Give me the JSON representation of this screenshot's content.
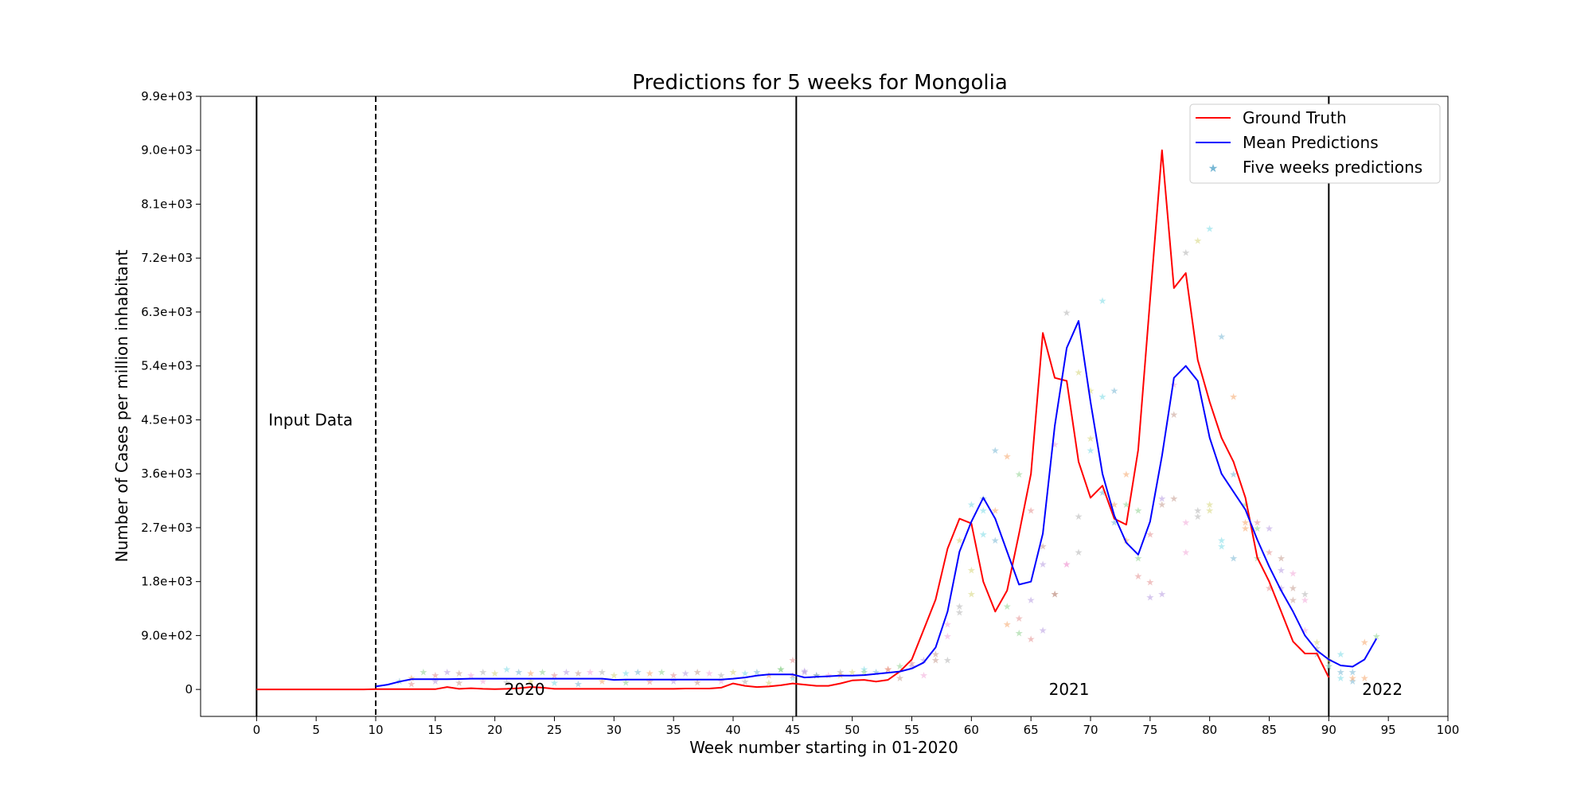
{
  "chart_data": {
    "type": "line",
    "title": "Predictions for 5 weeks for Mongolia",
    "xlabel": "Week number starting in 01-2020",
    "ylabel": "Number of Cases per million inhabitant",
    "xlim": [
      -4.7,
      100
    ],
    "ylim": [
      -450,
      9900
    ],
    "x_ticks": [
      0,
      5,
      10,
      15,
      20,
      25,
      30,
      35,
      40,
      45,
      50,
      55,
      60,
      65,
      70,
      75,
      80,
      85,
      90,
      95,
      100
    ],
    "y_ticks": [
      0,
      900,
      1800,
      2700,
      3600,
      4500,
      5400,
      6300,
      7200,
      8100,
      9000,
      9900
    ],
    "y_tick_labels": [
      "0",
      "9.0e+02",
      "1.8e+03",
      "2.7e+03",
      "3.6e+03",
      "4.5e+03",
      "5.4e+03",
      "6.3e+03",
      "7.2e+03",
      "8.1e+03",
      "9.0e+03",
      "9.9e+03"
    ],
    "grid": false,
    "legend_position": "top-right",
    "vertical_lines": [
      {
        "x": 0,
        "style": "solid"
      },
      {
        "x": 10,
        "style": "dashed"
      },
      {
        "x": 45.3,
        "style": "solid"
      },
      {
        "x": 90,
        "style": "solid"
      }
    ],
    "annotations": [
      {
        "text": "Input Data",
        "x": 1,
        "y": 4500
      },
      {
        "text": "2020",
        "x": 20.8,
        "y": 0
      },
      {
        "text": "2021",
        "x": 66.5,
        "y": 0
      },
      {
        "text": "2022",
        "x": 92.8,
        "y": 0
      }
    ],
    "series": [
      {
        "name": "Ground Truth",
        "color": "#ff0000",
        "style": "line",
        "x": [
          0,
          1,
          2,
          3,
          4,
          5,
          6,
          7,
          8,
          9,
          10,
          11,
          12,
          13,
          14,
          15,
          16,
          17,
          18,
          19,
          20,
          21,
          22,
          23,
          24,
          25,
          26,
          27,
          28,
          29,
          30,
          31,
          32,
          33,
          34,
          35,
          36,
          37,
          38,
          39,
          40,
          41,
          42,
          43,
          44,
          45,
          46,
          47,
          48,
          49,
          50,
          51,
          52,
          53,
          54,
          55,
          56,
          57,
          58,
          59,
          60,
          61,
          62,
          63,
          64,
          65,
          66,
          67,
          68,
          69,
          70,
          71,
          72,
          73,
          74,
          75,
          76,
          77,
          78,
          79,
          80,
          81,
          82,
          83,
          84,
          85,
          86,
          87,
          88,
          89,
          90
        ],
        "y": [
          0,
          0,
          0,
          0,
          0,
          0,
          0,
          0,
          0,
          0,
          5,
          5,
          5,
          5,
          5,
          5,
          40,
          10,
          20,
          10,
          5,
          10,
          20,
          40,
          30,
          10,
          10,
          10,
          10,
          10,
          10,
          10,
          10,
          10,
          10,
          10,
          15,
          15,
          15,
          30,
          100,
          60,
          40,
          50,
          70,
          100,
          80,
          60,
          60,
          100,
          150,
          160,
          130,
          160,
          300,
          500,
          1000,
          1500,
          2350,
          2850,
          2770,
          1800,
          1300,
          1650,
          2600,
          3600,
          5950,
          5200,
          5150,
          3800,
          3200,
          3400,
          2850,
          2750,
          4000,
          6500,
          9000,
          6700,
          6950,
          5500,
          4800,
          4200,
          3800,
          3200,
          2200,
          1800,
          1300,
          800,
          600,
          600,
          200
        ]
      },
      {
        "name": "Mean Predictions",
        "color": "#0000ff",
        "style": "line",
        "x": [
          10,
          11,
          12,
          13,
          14,
          15,
          16,
          17,
          18,
          19,
          20,
          21,
          22,
          23,
          24,
          25,
          26,
          27,
          28,
          29,
          30,
          31,
          32,
          33,
          34,
          35,
          36,
          37,
          38,
          39,
          40,
          41,
          42,
          43,
          44,
          45,
          46,
          47,
          48,
          49,
          50,
          51,
          52,
          53,
          54,
          55,
          56,
          57,
          58,
          59,
          60,
          61,
          62,
          63,
          64,
          65,
          66,
          67,
          68,
          69,
          70,
          71,
          72,
          73,
          74,
          75,
          76,
          77,
          78,
          79,
          80,
          81,
          82,
          83,
          84,
          85,
          86,
          87,
          88,
          89,
          90,
          91,
          92,
          93,
          94
        ],
        "y": [
          50,
          80,
          130,
          170,
          170,
          170,
          170,
          175,
          180,
          180,
          180,
          180,
          180,
          180,
          180,
          180,
          180,
          180,
          180,
          180,
          160,
          165,
          165,
          165,
          165,
          165,
          165,
          165,
          165,
          165,
          180,
          200,
          230,
          250,
          250,
          250,
          200,
          210,
          220,
          230,
          230,
          240,
          260,
          280,
          300,
          350,
          450,
          700,
          1300,
          2300,
          2800,
          3200,
          2850,
          2300,
          1750,
          1800,
          2600,
          4400,
          5700,
          6150,
          4800,
          3600,
          2900,
          2450,
          2250,
          2800,
          3900,
          5200,
          5400,
          5150,
          4200,
          3600,
          3300,
          3000,
          2500,
          2050,
          1650,
          1300,
          900,
          650,
          500,
          400,
          380,
          500,
          850
        ]
      },
      {
        "name": "Five weeks predictions",
        "color": "#76b7d4",
        "style": "markers",
        "marker": "star",
        "x": [
          12,
          13,
          14,
          15,
          16,
          17,
          18,
          19,
          20,
          21,
          22,
          23,
          24,
          25,
          26,
          27,
          28,
          29,
          30,
          31,
          32,
          33,
          34,
          35,
          36,
          37,
          38,
          39,
          40,
          41,
          42,
          43,
          44,
          45,
          46,
          47,
          48,
          49,
          50,
          51,
          52,
          53,
          54,
          55,
          56,
          57,
          58,
          59,
          60,
          61,
          62,
          63,
          64,
          65,
          66,
          67,
          68,
          69,
          70,
          71,
          72,
          73,
          74,
          75,
          76,
          77,
          78,
          79,
          80,
          81,
          82,
          83,
          84,
          85,
          86,
          87,
          88,
          89,
          90,
          91,
          92,
          93,
          94,
          13,
          15,
          17,
          19,
          21,
          23,
          25,
          27,
          29,
          31,
          33,
          35,
          37,
          39,
          41,
          43,
          45,
          47,
          49,
          51,
          53,
          55,
          57,
          58,
          59,
          60,
          61,
          62,
          63,
          64,
          65,
          66,
          67,
          68,
          69,
          70,
          71,
          72,
          73,
          74,
          75,
          76,
          77,
          78,
          79,
          80,
          81,
          82,
          83,
          84,
          85,
          86,
          87,
          88,
          89,
          90,
          91,
          92,
          93,
          44,
          45,
          46,
          54,
          56,
          58,
          59,
          60,
          61,
          62,
          63,
          64,
          65,
          66,
          67,
          68,
          69,
          70,
          71,
          72,
          73,
          74,
          75,
          76,
          77,
          78,
          79,
          80,
          81,
          82,
          83,
          84,
          85,
          86,
          87,
          88,
          89,
          90,
          91,
          92
        ],
        "y": [
          150,
          200,
          300,
          250,
          300,
          280,
          250,
          300,
          280,
          350,
          300,
          280,
          300,
          250,
          300,
          280,
          300,
          300,
          250,
          280,
          300,
          280,
          300,
          250,
          280,
          300,
          280,
          250,
          300,
          280,
          300,
          250,
          350,
          500,
          300,
          250,
          250,
          300,
          300,
          350,
          300,
          350,
          400,
          450,
          500,
          600,
          900,
          1300,
          2000,
          3000,
          4000,
          3900,
          3600,
          3000,
          2100,
          1600,
          2100,
          2900,
          5000,
          6500,
          5000,
          3600,
          3000,
          2600,
          3200,
          3200,
          2800,
          2900,
          3000,
          2500,
          2200,
          2800,
          2700,
          2300,
          2000,
          1700,
          1500,
          700,
          500,
          600,
          300,
          800,
          900,
          100,
          150,
          120,
          150,
          130,
          150,
          120,
          100,
          150,
          130,
          140,
          150,
          130,
          150,
          140,
          120,
          200,
          250,
          250,
          300,
          350,
          400,
          500,
          1100,
          1400,
          1600,
          2600,
          2500,
          1100,
          950,
          850,
          1000,
          1600,
          2100,
          2300,
          4200,
          4900,
          2800,
          2500,
          2200,
          1800,
          1600,
          4600,
          2300,
          3000,
          3100,
          2400,
          3600,
          2700,
          2200,
          1700,
          1700,
          1500,
          1000,
          600,
          400,
          200,
          150,
          200,
          350,
          250,
          320,
          200,
          250,
          500,
          2500,
          3100,
          3200,
          3000,
          1400,
          1200,
          1500,
          2400,
          4100,
          6300,
          5300,
          4000,
          3300,
          3100,
          3100,
          1900,
          1550,
          3100,
          5100,
          7300,
          7500,
          7700,
          5900,
          4900,
          3100,
          2800,
          2700,
          2200,
          1950,
          1600,
          800,
          400,
          300,
          200
        ]
      }
    ]
  }
}
